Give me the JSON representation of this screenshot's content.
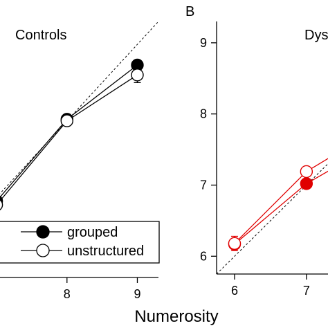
{
  "figure": {
    "xlabel": "Numerosity"
  },
  "chart_data": [
    {
      "type": "line",
      "title": "Controls",
      "panel_letter": "",
      "xlabel": "",
      "ylabel": "",
      "x_ticks": [
        "8",
        "9"
      ],
      "y_ticks": [],
      "xlim": [
        6.95,
        9.3
      ],
      "ylim": [
        5.95,
        9.3
      ],
      "identity_line": true,
      "legend": {
        "placement": "bottom-right",
        "entries": [
          {
            "label": "grouped",
            "marker": "filled"
          },
          {
            "label": "unstructured",
            "marker": "open"
          }
        ]
      },
      "series": [
        {
          "name": "grouped",
          "color": "#000000",
          "marker": "filled",
          "x": [
            7,
            8,
            9
          ],
          "y": [
            6.95,
            8.02,
            8.73
          ],
          "err": [
            0,
            0,
            0
          ]
        },
        {
          "name": "unstructured",
          "color": "#000000",
          "marker": "open",
          "x": [
            7,
            8,
            9
          ],
          "y": [
            6.9,
            8.0,
            8.6
          ],
          "err": [
            0,
            0,
            0.1
          ]
        }
      ]
    },
    {
      "type": "line",
      "title": "Dys",
      "panel_letter": "B",
      "xlabel": "",
      "ylabel": "",
      "x_ticks": [
        "6",
        "7"
      ],
      "y_ticks": [
        "6",
        "7",
        "8",
        "9"
      ],
      "xlim": [
        5.75,
        7.3
      ],
      "ylim": [
        5.75,
        9.3
      ],
      "identity_line": true,
      "series": [
        {
          "name": "grouped",
          "color": "#e00000",
          "marker": "filled",
          "x": [
            6,
            7,
            8
          ],
          "y": [
            6.17,
            7.02,
            7.6
          ],
          "err": [
            0,
            0,
            0
          ]
        },
        {
          "name": "unstructured",
          "color": "#e00000",
          "marker": "open",
          "x": [
            6,
            7,
            8
          ],
          "y": [
            6.18,
            7.19,
            7.8
          ],
          "err": [
            0.1,
            0,
            0
          ]
        }
      ]
    }
  ]
}
